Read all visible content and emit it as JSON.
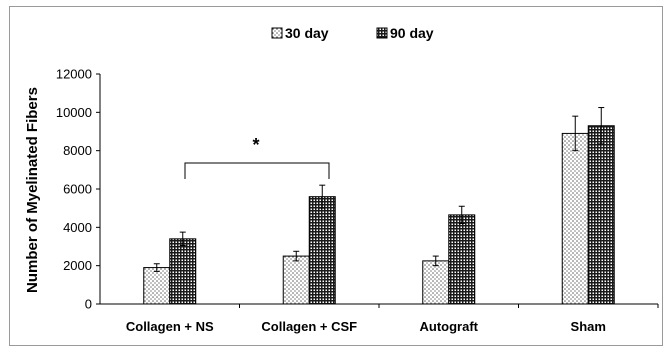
{
  "chart_data": {
    "type": "bar",
    "title": "",
    "xlabel": "",
    "ylabel": "Number of Myelinated Fibers",
    "ylim": [
      0,
      12000
    ],
    "yticks": [
      0,
      2000,
      4000,
      6000,
      8000,
      10000,
      12000
    ],
    "grid": false,
    "legend_position": "top",
    "categories": [
      "Collagen + NS",
      "Collagen + CSF",
      "Autograft",
      "Sham"
    ],
    "series": [
      {
        "name": "30 day",
        "values": [
          1900,
          2500,
          2250,
          8900
        ],
        "errors": [
          200,
          250,
          250,
          900
        ],
        "pattern": "dots"
      },
      {
        "name": "90 day",
        "values": [
          3400,
          5600,
          4650,
          9300
        ],
        "errors": [
          350,
          600,
          450,
          950
        ],
        "pattern": "grid"
      }
    ],
    "annotations": [
      {
        "text": "*",
        "type": "significance-bracket",
        "between": [
          "Collagen + NS",
          "Collagen + CSF"
        ]
      }
    ]
  }
}
